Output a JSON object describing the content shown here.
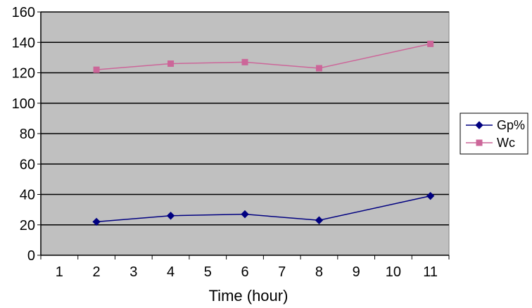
{
  "chart_data": {
    "type": "line",
    "title": "",
    "xlabel": "Time (hour)",
    "ylabel": "",
    "x_categories": [
      "1",
      "2",
      "3",
      "4",
      "5",
      "6",
      "7",
      "8",
      "9",
      "10",
      "11"
    ],
    "ylim": [
      0,
      160
    ],
    "y_ticks": [
      "0",
      "20",
      "40",
      "60",
      "80",
      "100",
      "120",
      "140",
      "160"
    ],
    "grid": "horizontal",
    "legend_position": "right",
    "plot_background": "#C0C0C0",
    "series": [
      {
        "name": "Gp%",
        "color": "#000080",
        "marker": "diamond",
        "points": [
          {
            "x": 2,
            "y": 22
          },
          {
            "x": 4,
            "y": 26
          },
          {
            "x": 6,
            "y": 27
          },
          {
            "x": 8,
            "y": 23
          },
          {
            "x": 11,
            "y": 39
          }
        ]
      },
      {
        "name": "Wc",
        "color": "#CC6699",
        "marker": "square",
        "points": [
          {
            "x": 2,
            "y": 122
          },
          {
            "x": 4,
            "y": 126
          },
          {
            "x": 6,
            "y": 127
          },
          {
            "x": 8,
            "y": 123
          },
          {
            "x": 11,
            "y": 139
          }
        ]
      }
    ]
  }
}
